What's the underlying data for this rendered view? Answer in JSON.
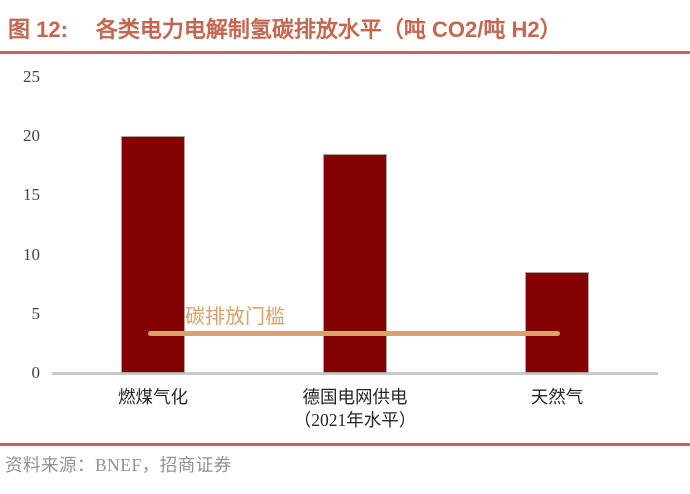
{
  "header": {
    "figure_label": "图 12:",
    "title": "各类电力电解制氢碳排放水平（吨 CO2/吨 H2）"
  },
  "chart_data": {
    "type": "bar",
    "title": "各类电力电解制氢碳排放水平",
    "unit_label": "吨 CO2/吨 H2",
    "categories": [
      "燃煤气化",
      "德国电网供电\n（2021年水平）",
      "天然气"
    ],
    "values": [
      20,
      18.5,
      8.5
    ],
    "ylim": [
      0,
      25
    ],
    "yticks": [
      0,
      5,
      10,
      15,
      20,
      25
    ],
    "grid": false,
    "legend_position": "none",
    "threshold_line": {
      "label": "碳排放门槛",
      "value": 3.3
    }
  },
  "footer": {
    "source": "资料来源：BNEF，招商证券"
  },
  "colors": {
    "accent": "#c46750",
    "bar_fill": "#850202",
    "threshold": "#d9a268",
    "axis_line": "#c9c9c9",
    "axis_text": "#444444",
    "category_text": "#262626",
    "source_text": "#919191"
  }
}
